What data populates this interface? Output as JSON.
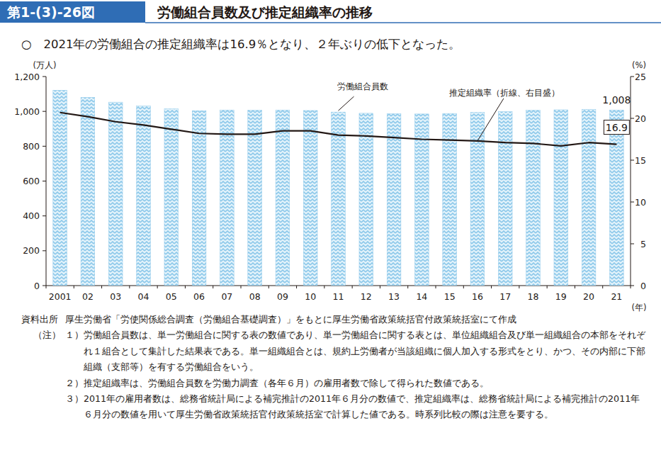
{
  "chart_data": {
    "type": "bar",
    "figure_number": "第1-(3)-26図",
    "title": "労働組合員数及び推定組織率の推移",
    "subtitle": "○　2021年の労働組合の推定組織率は16.9％となり、２年ぶりの低下となった。",
    "y_label": "(万人)",
    "y2_label": "(%)",
    "x_label": "(年)",
    "categories": [
      "2001",
      "02",
      "03",
      "04",
      "05",
      "06",
      "07",
      "08",
      "09",
      "10",
      "11",
      "12",
      "13",
      "14",
      "15",
      "16",
      "17",
      "18",
      "19",
      "20",
      "21"
    ],
    "series": [
      {
        "name": "労働組合員数",
        "type": "bar",
        "axis": "y",
        "color": "#8cc8ea",
        "values": [
          1121,
          1080,
          1053,
          1031,
          1014,
          1004,
          1008,
          1007,
          1008,
          1005,
          996,
          989,
          987,
          985,
          988,
          994,
          998,
          1007,
          1009,
          1012,
          1008
        ],
        "value_labels": [
          null,
          null,
          null,
          null,
          null,
          null,
          null,
          null,
          null,
          null,
          null,
          null,
          null,
          null,
          null,
          null,
          null,
          null,
          null,
          null,
          "1,008"
        ]
      },
      {
        "name": "推定組織率（折線、右目盛）",
        "type": "line",
        "axis": "y2",
        "color": "#231815",
        "values": [
          20.7,
          20.2,
          19.6,
          19.2,
          18.7,
          18.2,
          18.1,
          18.1,
          18.5,
          18.5,
          18.0,
          17.9,
          17.7,
          17.5,
          17.4,
          17.3,
          17.1,
          17.0,
          16.7,
          17.1,
          16.9
        ],
        "value_labels": [
          null,
          null,
          null,
          null,
          null,
          null,
          null,
          null,
          null,
          null,
          null,
          null,
          null,
          null,
          null,
          null,
          null,
          null,
          null,
          null,
          "16.9"
        ]
      }
    ],
    "ylim": [
      0,
      1200
    ],
    "yticks": [
      0,
      200,
      400,
      600,
      800,
      {
        "value": 1000,
        "label": "1,000"
      },
      {
        "value": 1200,
        "label": "1,200"
      }
    ],
    "y2lim": [
      0,
      25
    ],
    "y2ticks": [
      0,
      5,
      10,
      15,
      20,
      25
    ],
    "grid": false
  },
  "footer": {
    "source_label": "資料出所",
    "source": "厚生労働省「労使関係総合調査（労働組合基礎調査）」をもとに厚生労働省政策統括官付政策統括室にて作成",
    "notes_label": "（注）",
    "notes": [
      {
        "number": "１）",
        "text": "労働組合員数は、単一労働組合に関する表の数値であり、単一労働組合に関する表とは、単位組織組合及び単一組織組合の本部をそれぞれ１組合として集計した結果表である。単一組織組合とは、規約上労働者が当該組織に個人加入する形式をとり、かつ、その内部に下部組織（支部等）を有する労働組合をいう。"
      },
      {
        "number": "２）",
        "text": "推定組織率は、労働組合員数を労働力調査（各年６月）の雇用者数で除して得られた数値である。"
      },
      {
        "number": "３）",
        "text": "2011年の雇用者数は、総務省統計局による補完推計の2011年６月分の数値で、推定組織率は、総務省統計局による補完推計の2011年６月分の数値を用いて厚生労働省政策統括官付政策統括室で計算した値である。時系列比較の際は注意を要する。"
      }
    ]
  }
}
